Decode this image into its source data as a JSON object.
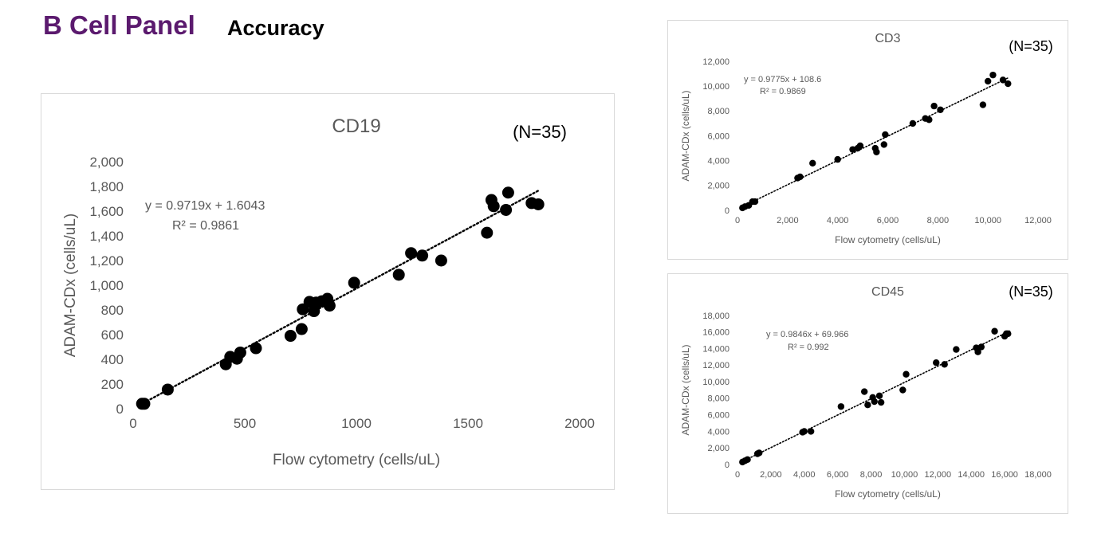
{
  "header": {
    "title": "B Cell Panel",
    "subtitle": "Accuracy"
  },
  "colors": {
    "title": "#5b1a6e",
    "marker": "#000000",
    "axis_text": "#595959",
    "gridline": "#d9d9d9"
  },
  "chart_data": [
    {
      "type": "scatter",
      "title": "CD19",
      "annotation": "(N=35)",
      "xlabel": "Flow cytometry (cells/uL)",
      "ylabel": "ADAM-CDx (cells/uL)",
      "xlim": [
        0,
        2000
      ],
      "ylim": [
        0,
        2000
      ],
      "xticks": [
        0,
        500,
        1000,
        1500,
        2000
      ],
      "xtick_labels": [
        "0",
        "500",
        "1000",
        "1500",
        "2000"
      ],
      "yticks": [
        0,
        200,
        400,
        600,
        800,
        1000,
        1200,
        1400,
        1600,
        1800,
        2000
      ],
      "ytick_labels": [
        "0",
        "200",
        "400",
        "600",
        "800",
        "1,000",
        "1,200",
        "1,400",
        "1,600",
        "1,800",
        "2,000"
      ],
      "grid": false,
      "trendline": {
        "type": "linear",
        "slope": 0.9719,
        "intercept": 1.6043,
        "x_range": [
          30,
          1820
        ],
        "style": "dotted"
      },
      "equation_label": "y = 0.9719x + 1.6043",
      "r2_label": "R² = 0.9861",
      "series": [
        {
          "points": [
            [
              40,
              40
            ],
            [
              50,
              40
            ],
            [
              155,
              155
            ],
            [
              415,
              360
            ],
            [
              435,
              420
            ],
            [
              465,
              405
            ],
            [
              480,
              455
            ],
            [
              550,
              490
            ],
            [
              705,
              590
            ],
            [
              755,
              645
            ],
            [
              760,
              805
            ],
            [
              790,
              865
            ],
            [
              810,
              790
            ],
            [
              820,
              860
            ],
            [
              845,
              870
            ],
            [
              870,
              890
            ],
            [
              880,
              835
            ],
            [
              990,
              1020
            ],
            [
              1190,
              1085
            ],
            [
              1245,
              1260
            ],
            [
              1295,
              1240
            ],
            [
              1380,
              1200
            ],
            [
              1585,
              1425
            ],
            [
              1605,
              1690
            ],
            [
              1615,
              1640
            ],
            [
              1670,
              1610
            ],
            [
              1680,
              1750
            ],
            [
              1785,
              1665
            ],
            [
              1815,
              1655
            ]
          ]
        }
      ]
    },
    {
      "type": "scatter",
      "title": "CD3",
      "annotation": "(N=35)",
      "xlabel": "Flow cytometry (cells/uL)",
      "ylabel": "ADAM-CDx (cells/uL)",
      "xlim": [
        0,
        12000
      ],
      "ylim": [
        0,
        12000
      ],
      "xticks": [
        0,
        2000,
        4000,
        6000,
        8000,
        10000,
        12000
      ],
      "xtick_labels": [
        "0",
        "2,000",
        "4,000",
        "6,000",
        "8,000",
        "10,000",
        "12,000"
      ],
      "yticks": [
        0,
        2000,
        4000,
        6000,
        8000,
        10000,
        12000
      ],
      "ytick_labels": [
        "0",
        "2,000",
        "4,000",
        "6,000",
        "8,000",
        "10,000",
        "12,000"
      ],
      "grid": false,
      "trendline": {
        "type": "linear",
        "slope": 0.9775,
        "intercept": 108.6,
        "x_range": [
          200,
          10800
        ],
        "style": "dotted"
      },
      "equation_label": "y = 0.9775x + 108.6",
      "r2_label": "R² = 0.9869",
      "series": [
        {
          "points": [
            [
              200,
              200
            ],
            [
              300,
              300
            ],
            [
              450,
              400
            ],
            [
              600,
              700
            ],
            [
              700,
              700
            ],
            [
              2400,
              2600
            ],
            [
              2500,
              2700
            ],
            [
              3000,
              3800
            ],
            [
              4000,
              4100
            ],
            [
              4600,
              4900
            ],
            [
              4800,
              5000
            ],
            [
              4900,
              5200
            ],
            [
              5500,
              5000
            ],
            [
              5550,
              4700
            ],
            [
              5850,
              5300
            ],
            [
              5900,
              6100
            ],
            [
              7000,
              7000
            ],
            [
              7500,
              7400
            ],
            [
              7650,
              7300
            ],
            [
              7850,
              8400
            ],
            [
              8100,
              8100
            ],
            [
              9800,
              8500
            ],
            [
              10000,
              10400
            ],
            [
              10200,
              10900
            ],
            [
              10600,
              10500
            ],
            [
              10800,
              10200
            ]
          ]
        }
      ]
    },
    {
      "type": "scatter",
      "title": "CD45",
      "annotation": "(N=35)",
      "xlabel": "Flow cytometry (cells/uL)",
      "ylabel": "ADAM-CDx (cells/uL)",
      "xlim": [
        0,
        18000
      ],
      "ylim": [
        0,
        18000
      ],
      "xticks": [
        0,
        2000,
        4000,
        6000,
        8000,
        10000,
        12000,
        14000,
        16000,
        18000
      ],
      "xtick_labels": [
        "0",
        "2,000",
        "4,000",
        "6,000",
        "8,000",
        "10,000",
        "12,000",
        "14,000",
        "16,000",
        "18,000"
      ],
      "yticks": [
        0,
        2000,
        4000,
        6000,
        8000,
        10000,
        12000,
        14000,
        16000,
        18000
      ],
      "ytick_labels": [
        "0",
        "2,000",
        "4,000",
        "6,000",
        "8,000",
        "10,000",
        "12,000",
        "14,000",
        "16,000",
        "18,000"
      ],
      "grid": false,
      "trendline": {
        "type": "linear",
        "slope": 0.9846,
        "intercept": 69.966,
        "x_range": [
          300,
          16300
        ],
        "style": "dotted"
      },
      "equation_label": "y = 0.9846x + 69.966",
      "r2_label": "R² = 0.992",
      "series": [
        {
          "points": [
            [
              300,
              300
            ],
            [
              450,
              450
            ],
            [
              600,
              600
            ],
            [
              1200,
              1300
            ],
            [
              1300,
              1400
            ],
            [
              3900,
              3900
            ],
            [
              4000,
              4000
            ],
            [
              4400,
              4000
            ],
            [
              6200,
              7000
            ],
            [
              7600,
              8800
            ],
            [
              7800,
              7200
            ],
            [
              8100,
              8100
            ],
            [
              8200,
              7600
            ],
            [
              8500,
              8300
            ],
            [
              8600,
              7500
            ],
            [
              9900,
              9000
            ],
            [
              10100,
              10900
            ],
            [
              11900,
              12300
            ],
            [
              12400,
              12100
            ],
            [
              13100,
              13900
            ],
            [
              14300,
              14100
            ],
            [
              14400,
              13600
            ],
            [
              14600,
              14200
            ],
            [
              15400,
              16100
            ],
            [
              16000,
              15500
            ],
            [
              16100,
              15800
            ],
            [
              16200,
              15800
            ]
          ]
        }
      ]
    }
  ]
}
